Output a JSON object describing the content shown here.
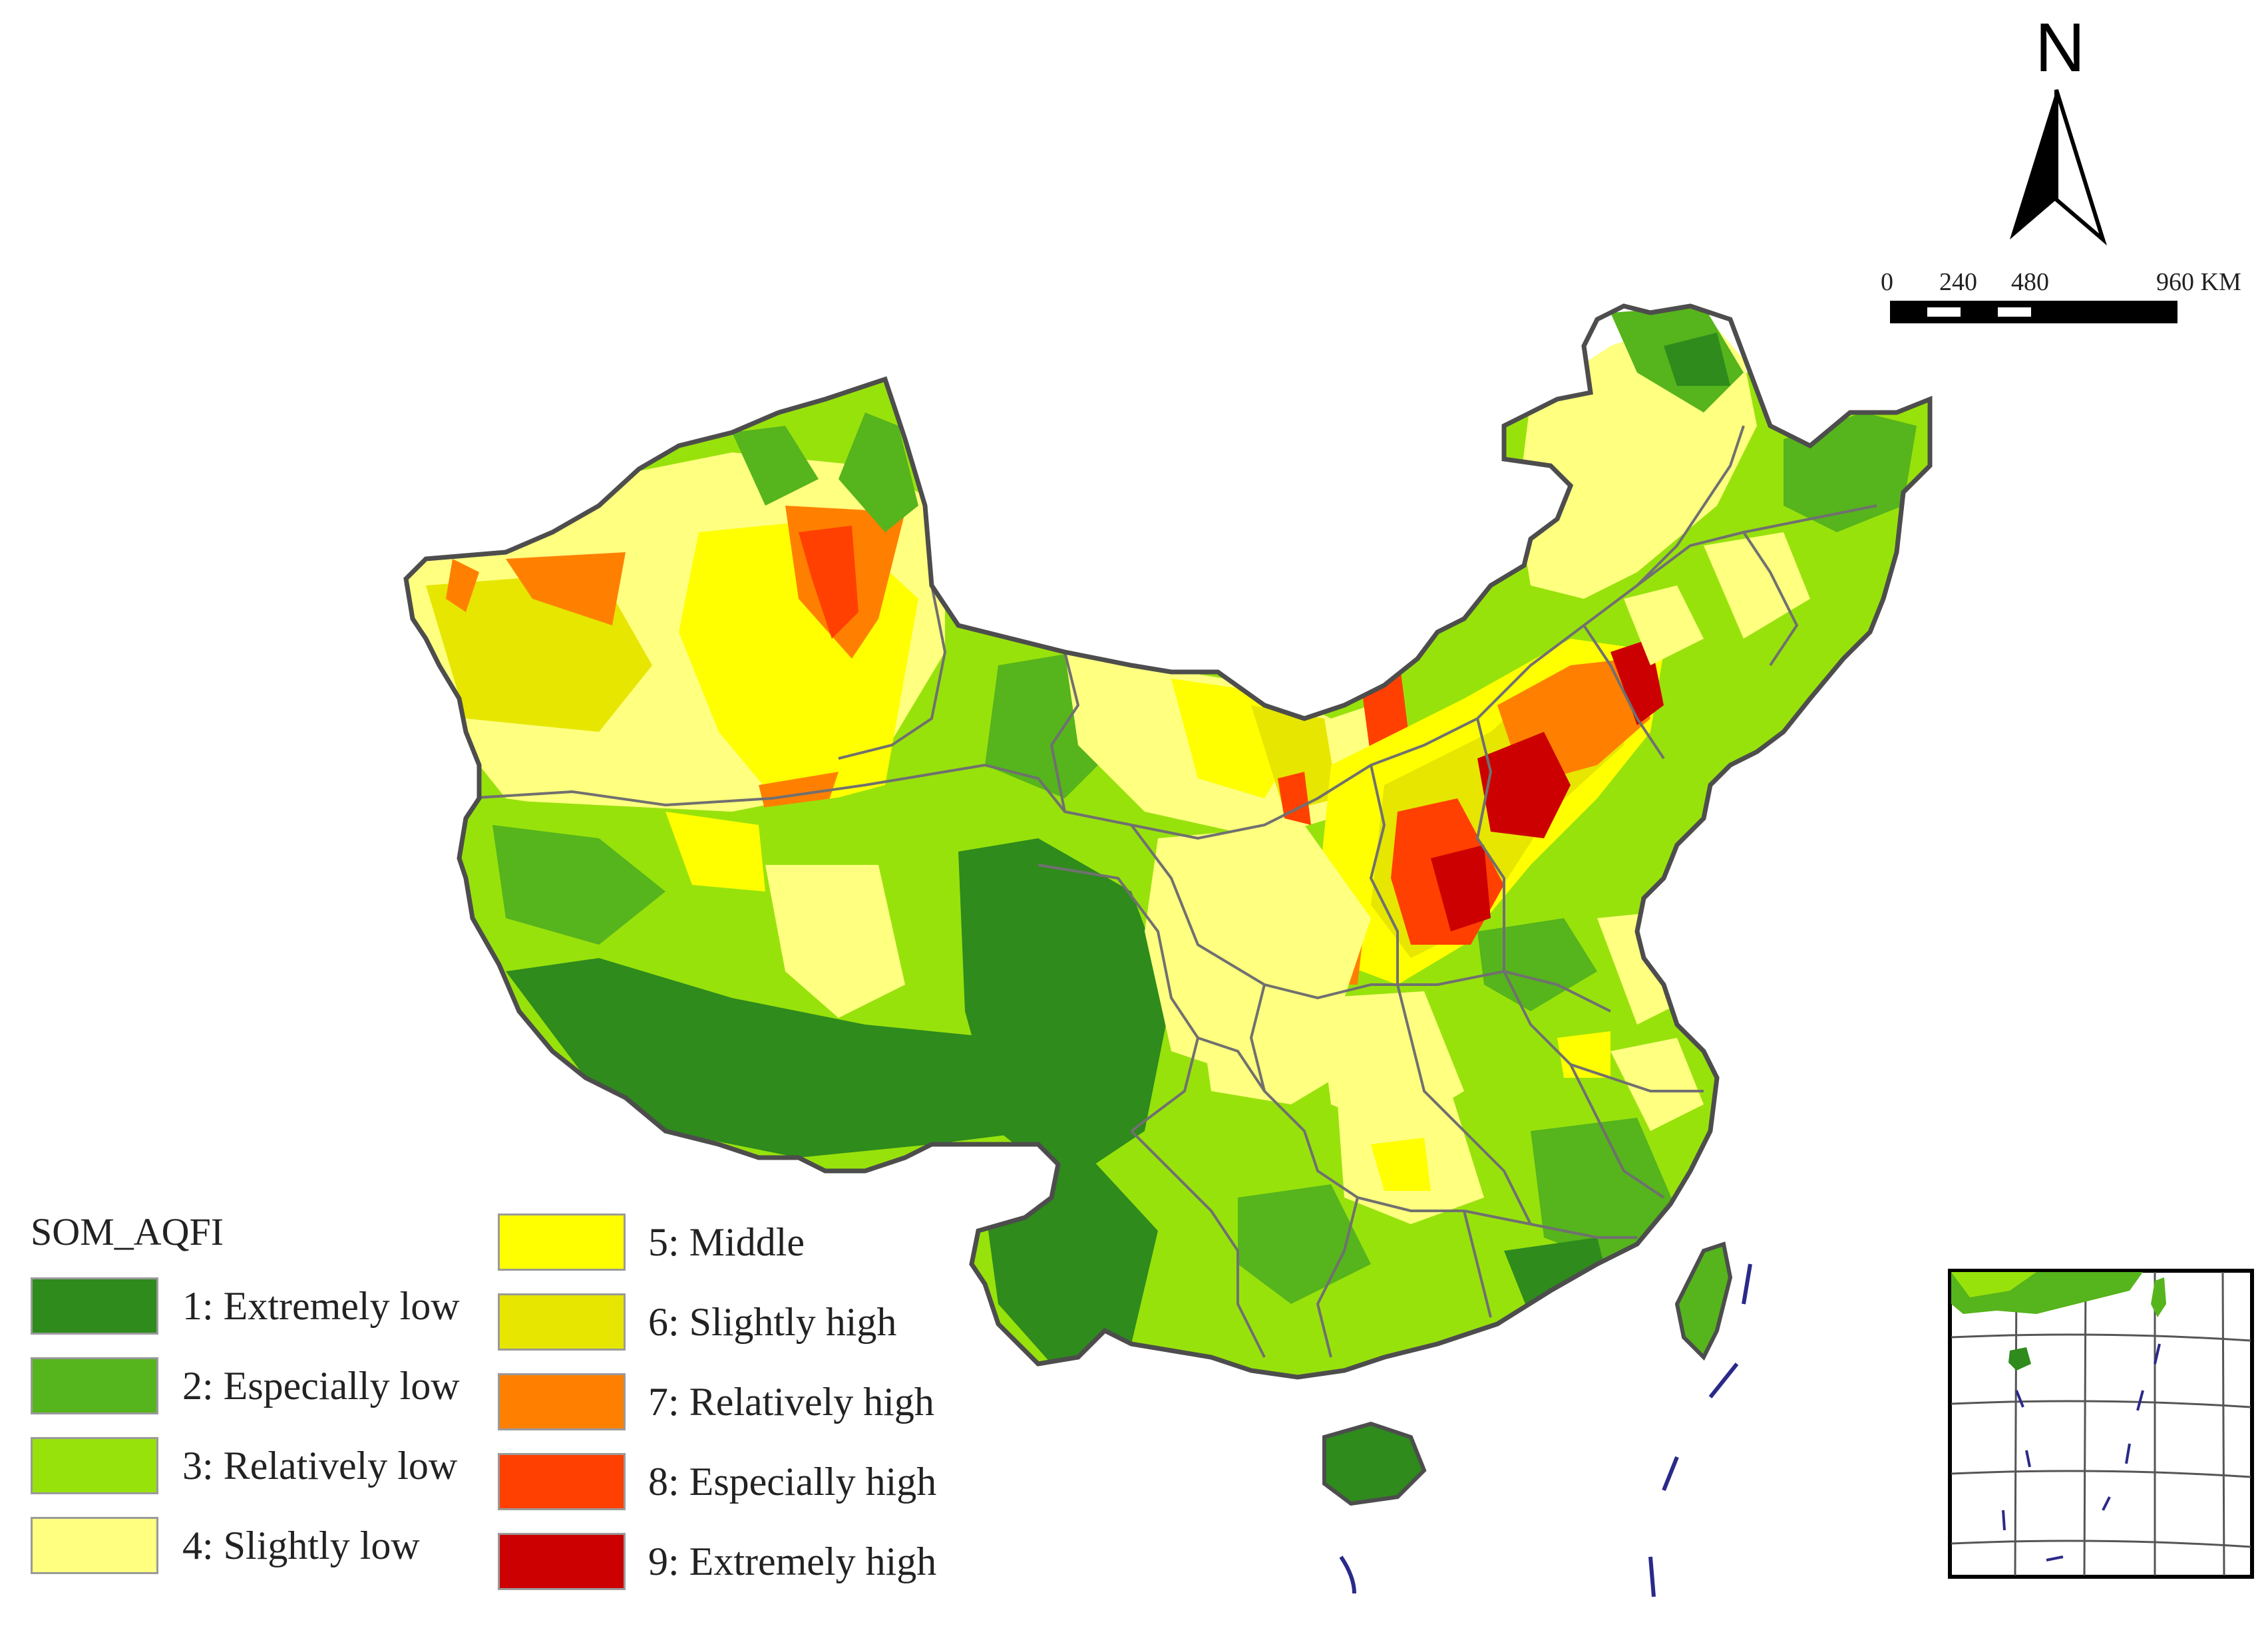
{
  "legend": {
    "title": "SOM_AQFI",
    "items": [
      {
        "label": "1: Extremely low",
        "color": "#2e8b1c"
      },
      {
        "label": "2: Especially low",
        "color": "#56b41c"
      },
      {
        "label": "3: Relatively low",
        "color": "#98e20c"
      },
      {
        "label": "4: Slightly low",
        "color": "#ffff80"
      },
      {
        "label": "5: Middle",
        "color": "#ffff00"
      },
      {
        "label": "6: Slightly high",
        "color": "#e6e600"
      },
      {
        "label": "7: Relatively high",
        "color": "#ff8000"
      },
      {
        "label": "8: Especially high",
        "color": "#ff4000"
      },
      {
        "label": "9: Extremely high",
        "color": "#cc0000"
      }
    ]
  },
  "north_arrow": {
    "label": "N"
  },
  "scale_bar": {
    "ticks": [
      "0",
      "240",
      "480",
      "960 KM"
    ]
  },
  "map": {
    "subject": "China",
    "inset": "South China Sea islands",
    "boundary_color": "#555555",
    "province_line_color": "#707070"
  }
}
